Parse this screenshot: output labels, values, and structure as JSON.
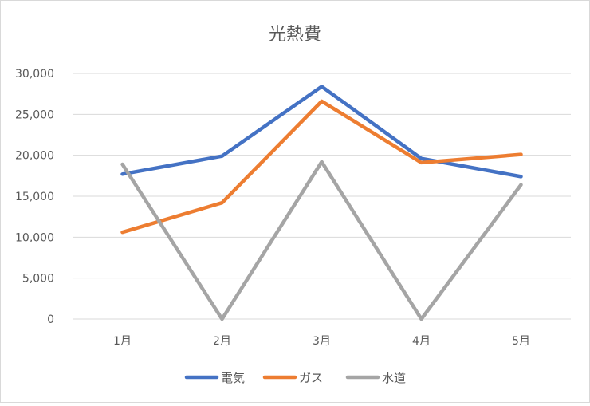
{
  "chart_data": {
    "type": "line",
    "title": "光熱費",
    "xlabel": "",
    "ylabel": "",
    "categories": [
      "1月",
      "2月",
      "3月",
      "4月",
      "5月"
    ],
    "ylim": [
      0,
      30000
    ],
    "y_ticks": [
      0,
      5000,
      10000,
      15000,
      20000,
      25000,
      30000
    ],
    "y_tick_labels": [
      "0",
      "5,000",
      "10,000",
      "15,000",
      "20,000",
      "25,000",
      "30,000"
    ],
    "grid": true,
    "legend_position": "bottom",
    "series": [
      {
        "name": "電気",
        "color": "#4472c4",
        "values": [
          17700,
          19900,
          28400,
          19600,
          17400
        ]
      },
      {
        "name": "ガス",
        "color": "#ed7d31",
        "values": [
          10600,
          14200,
          26600,
          19100,
          20100
        ]
      },
      {
        "name": "水道",
        "color": "#a5a5a5",
        "values": [
          18900,
          0,
          19200,
          0,
          16400
        ]
      }
    ]
  }
}
